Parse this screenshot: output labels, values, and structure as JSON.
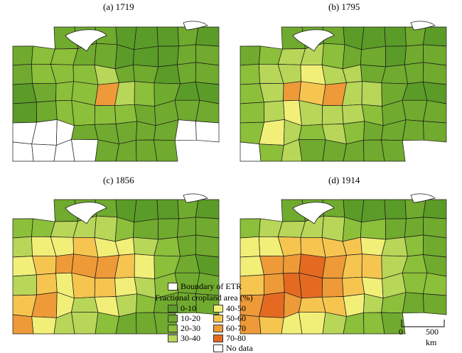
{
  "panels": [
    {
      "label": "(a) 1719",
      "values": [
        1,
        1,
        1,
        1,
        1,
        0,
        0,
        0,
        1,
        0,
        1,
        2,
        2,
        1,
        1,
        0,
        0,
        0,
        1,
        1,
        1,
        2,
        2,
        2,
        3,
        1,
        1,
        0,
        1,
        1,
        0,
        1,
        2,
        2,
        6,
        3,
        2,
        1,
        0,
        0,
        0,
        1,
        2,
        2,
        2,
        2,
        1,
        1,
        1,
        1,
        8,
        8,
        8,
        1,
        1,
        1,
        1,
        1,
        8,
        8,
        8,
        8,
        8,
        8,
        1,
        1,
        1,
        1,
        8,
        8
      ]
    },
    {
      "label": "(b) 1795",
      "values": [
        1,
        1,
        1,
        1,
        1,
        0,
        0,
        0,
        1,
        0,
        1,
        2,
        3,
        3,
        2,
        1,
        1,
        0,
        1,
        1,
        2,
        3,
        3,
        4,
        3,
        3,
        1,
        1,
        1,
        1,
        2,
        3,
        6,
        5,
        6,
        3,
        3,
        1,
        0,
        0,
        2,
        3,
        4,
        3,
        3,
        3,
        2,
        1,
        1,
        1,
        2,
        4,
        3,
        2,
        3,
        2,
        1,
        1,
        1,
        1,
        8,
        2,
        3,
        1,
        1,
        1,
        1,
        1,
        8,
        8
      ]
    },
    {
      "label": "(c) 1856",
      "values": [
        1,
        1,
        1,
        1,
        1,
        0,
        0,
        0,
        1,
        0,
        2,
        2,
        3,
        3,
        3,
        2,
        1,
        1,
        1,
        1,
        3,
        4,
        4,
        5,
        4,
        4,
        3,
        2,
        1,
        1,
        4,
        5,
        6,
        6,
        6,
        5,
        4,
        2,
        1,
        0,
        3,
        5,
        4,
        5,
        5,
        4,
        3,
        2,
        1,
        1,
        5,
        6,
        4,
        3,
        4,
        3,
        2,
        1,
        1,
        1,
        6,
        4,
        3,
        3,
        2,
        1,
        1,
        1,
        8,
        8
      ]
    },
    {
      "label": "(d) 1914",
      "values": [
        1,
        1,
        1,
        1,
        1,
        0,
        0,
        0,
        1,
        0,
        2,
        3,
        3,
        3,
        3,
        2,
        2,
        1,
        1,
        1,
        4,
        4,
        5,
        5,
        5,
        5,
        4,
        3,
        2,
        1,
        4,
        6,
        6,
        7,
        6,
        5,
        5,
        3,
        2,
        1,
        5,
        6,
        7,
        7,
        6,
        5,
        4,
        3,
        2,
        2,
        6,
        7,
        6,
        5,
        5,
        4,
        3,
        2,
        1,
        1,
        6,
        5,
        4,
        4,
        3,
        2,
        2,
        1,
        2,
        2
      ]
    }
  ],
  "legend": {
    "boundary_label": "Boundary of ETR",
    "title": "Fractional cropland area (%)",
    "classes": [
      {
        "label": "0-10",
        "color": "#5b9b28"
      },
      {
        "label": "10-20",
        "color": "#70aa2e"
      },
      {
        "label": "20-30",
        "color": "#8cbf3a"
      },
      {
        "label": "30-40",
        "color": "#b8d658"
      },
      {
        "label": "40-50",
        "color": "#f2ef78"
      },
      {
        "label": "50-60",
        "color": "#f6c550"
      },
      {
        "label": "60-70",
        "color": "#ee9a38"
      },
      {
        "label": "70-80",
        "color": "#e46a22"
      },
      {
        "label": "No data",
        "color": "#ffffff"
      }
    ]
  },
  "scale": {
    "zero": "0",
    "distance": "500 km"
  }
}
